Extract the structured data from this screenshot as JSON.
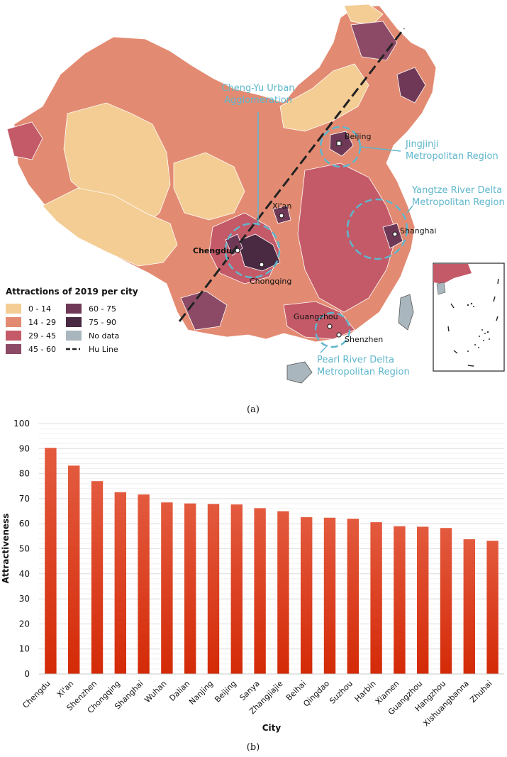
{
  "map": {
    "legend": {
      "title": "Attractions of 2019 per city",
      "items": [
        {
          "label": "0 - 14",
          "color": "#f4cd94"
        },
        {
          "label": "14 - 29",
          "color": "#e38b72"
        },
        {
          "label": "29 - 45",
          "color": "#c45a68"
        },
        {
          "label": "45 - 60",
          "color": "#8c4a66"
        },
        {
          "label": "60 - 75",
          "color": "#6e3856"
        },
        {
          "label": "75 - 90",
          "color": "#4a2a42"
        },
        {
          "label": "No data",
          "color": "#a9b6bd"
        },
        {
          "label": "Hu Line",
          "color": "#222222"
        }
      ]
    },
    "regions": {
      "chengyu": "Cheng-Yu Urban\nAgglomeration",
      "jingjinji": "Jingjinji\nMetropolitan Region",
      "yangtze": "Yangtze River Delta\nMetropolitan Region",
      "pearl": "Pearl River Delta\nMetropolitan Region"
    },
    "cities": [
      "Beijing",
      "Xi'an",
      "Shanghai",
      "Chengdu",
      "Chongqing",
      "Guangzhou",
      "Shenzhen"
    ],
    "annotation_color": "#5fb6cc"
  },
  "caption_a": "(a)",
  "caption_b": "(b)",
  "chart_data": {
    "type": "bar",
    "title": "",
    "xlabel": "City",
    "ylabel": "Attractiveness",
    "ylim": [
      0,
      100
    ],
    "yticks": [
      0,
      10,
      20,
      30,
      40,
      50,
      60,
      70,
      80,
      90,
      100
    ],
    "grid": true,
    "categories": [
      "Chengdu",
      "Xi'an",
      "Shenzhen",
      "Chongqing",
      "Shanghai",
      "Wuhan",
      "Dalian",
      "Nanjing",
      "Beijing",
      "Sanya",
      "Zhangjiajie",
      "Beihai",
      "Qingdao",
      "Suzhou",
      "Harbin",
      "Xiamen",
      "Guangzhou",
      "Hangzhou",
      "Xishuangbanna",
      "Zhuhai"
    ],
    "values": [
      90.3,
      83.2,
      77.0,
      72.6,
      71.7,
      68.5,
      68.1,
      67.9,
      67.7,
      66.2,
      65.0,
      62.6,
      62.4,
      62.0,
      60.6,
      59.0,
      58.8,
      58.3,
      53.8,
      53.2
    ],
    "bar_color_top": "#e35a3e",
    "bar_color_bottom": "#d42a07"
  }
}
